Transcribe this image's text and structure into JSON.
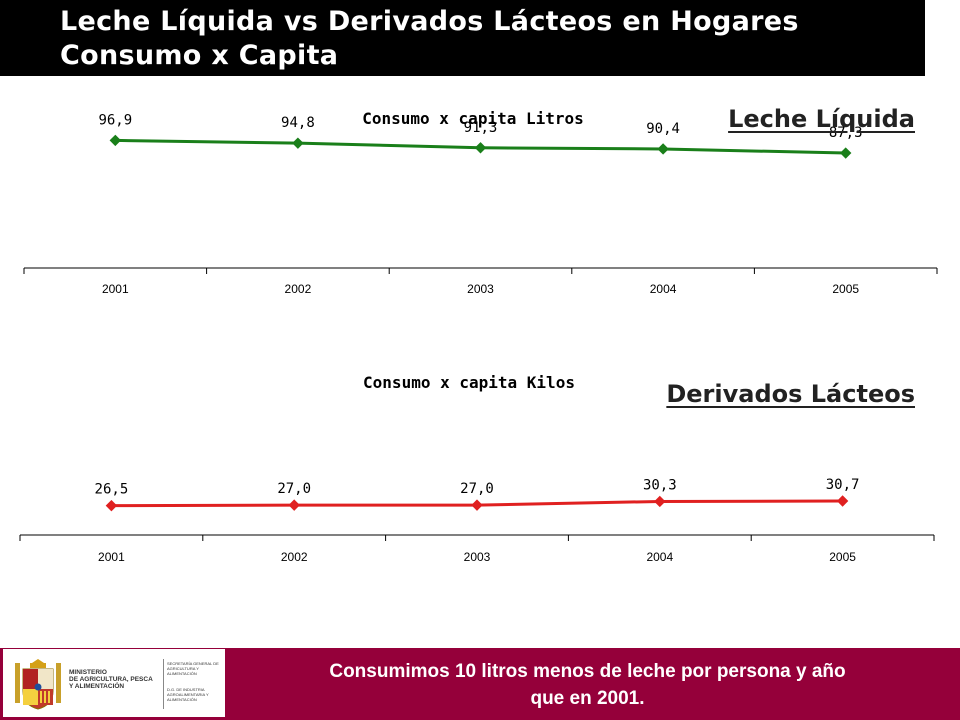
{
  "slide": {
    "title_line_1": "Leche Líquida vs Derivados Lácteos en Hogares",
    "title_line_2": "Consumo x Capita",
    "footer_text_line_1": "Consumimos 10 litros menos de leche por persona y año",
    "footer_text_line_2": "que en 2001.",
    "logo": {
      "ministry_line_1": "MINISTERIO",
      "ministry_line_2": "DE AGRICULTURA, PESCA",
      "ministry_line_3": "Y ALIMENTACIÓN",
      "secretaria_text": "SECRETARÍA GENERAL DE AGRICULTURA Y ALIMENTACIÓN",
      "dg_text": "D.G. DE INDUSTRIA AGROALIMENTARIA Y ALIMENTACIÓN"
    },
    "colors": {
      "title_bar": "#000000",
      "footer_bar": "#95003a",
      "series_leche": "#1a7f1a",
      "series_derivados": "#e02020"
    }
  },
  "chart_data": [
    {
      "type": "line",
      "title": "Consumo x capita Litros",
      "heading": "Leche Líquida",
      "categories": [
        "2001",
        "2002",
        "2003",
        "2004",
        "2005"
      ],
      "series": [
        {
          "values": [
            96.9,
            94.8,
            91.3,
            90.4,
            87.3
          ],
          "labels": [
            "96,9",
            "94,8",
            "91,3",
            "90,4",
            "87,3"
          ],
          "color": "#1a7f1a",
          "marker": "diamond"
        }
      ],
      "ylim": [
        0,
        120
      ],
      "grid": false
    },
    {
      "type": "line",
      "title": "Consumo x capita Kilos",
      "heading": "Derivados Lácteos",
      "categories": [
        "2001",
        "2002",
        "2003",
        "2004",
        "2005"
      ],
      "series": [
        {
          "values": [
            26.5,
            27.0,
            27.0,
            30.3,
            30.7
          ],
          "labels": [
            "26,5",
            "27,0",
            "27,0",
            "30,3",
            "30,7"
          ],
          "color": "#e02020",
          "marker": "diamond"
        }
      ],
      "ylim": [
        0,
        140
      ],
      "grid": false
    }
  ]
}
